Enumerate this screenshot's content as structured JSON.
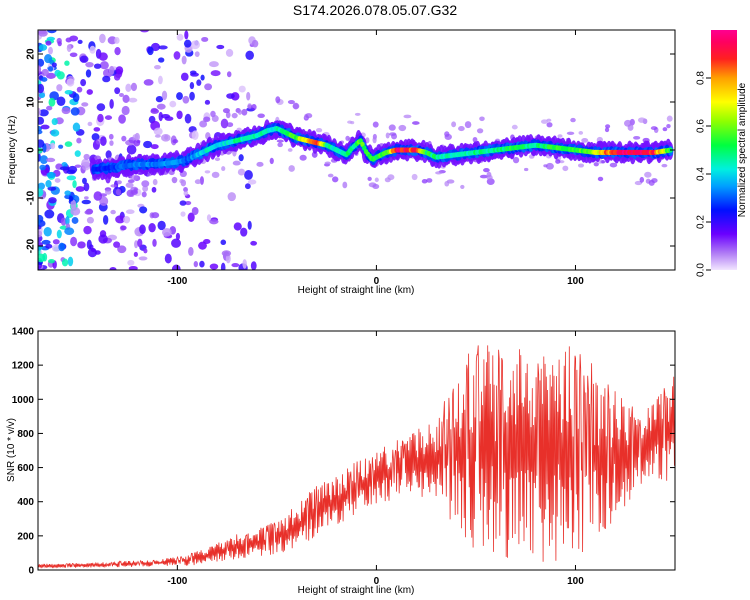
{
  "title": "S174.2026.078.05.07.G32",
  "chart_data": [
    {
      "id": "spectrogram",
      "type": "heatmap",
      "xlabel": "Height of straight line (km)",
      "ylabel": "Frequency (Hz)",
      "xlim": [
        -170,
        150
      ],
      "ylim": [
        -25,
        25
      ],
      "xticks": [
        "-100",
        "0",
        "100"
      ],
      "yticks": [
        "-20",
        "-10",
        "0",
        "10",
        "20"
      ],
      "yticks_values": [
        -20,
        -10,
        0,
        10,
        20
      ],
      "xticks_values": [
        -100,
        0,
        100
      ],
      "colorbar": {
        "label": "Normalized spectral amplitude",
        "range": [
          0.0,
          1.0
        ],
        "ticks": [
          "0.0",
          "0.2",
          "0.4",
          "0.6",
          "0.8"
        ],
        "ticks_values": [
          0.0,
          0.2,
          0.4,
          0.6,
          0.8
        ]
      },
      "ridge": {
        "x": [
          -140,
          -130,
          -120,
          -110,
          -100,
          -95,
          -90,
          -85,
          -80,
          -75,
          -70,
          -65,
          -60,
          -55,
          -50,
          -45,
          -40,
          -35,
          -30,
          -25,
          -20,
          -15,
          -12,
          -8,
          -5,
          -2,
          0,
          5,
          10,
          15,
          20,
          25,
          30,
          40,
          50,
          60,
          70,
          80,
          90,
          100,
          110,
          120,
          130,
          140,
          148
        ],
        "y": [
          -4,
          -3.5,
          -3,
          -3,
          -2.5,
          -2,
          -1,
          0,
          1,
          1.5,
          2,
          2.5,
          3,
          4,
          4.5,
          3.5,
          2.5,
          2,
          1.5,
          1,
          0,
          -1,
          0.5,
          2,
          -0.5,
          -2,
          -1.5,
          -0.5,
          0,
          0,
          0,
          -0.5,
          -1.5,
          -1,
          -0.5,
          0,
          0.5,
          1,
          0.5,
          0,
          -0.5,
          -0.5,
          -0.5,
          -0.5,
          0
        ]
      },
      "ridge_amplitude": [
        0.25,
        0.3,
        0.35,
        0.35,
        0.4,
        0.3,
        0.4,
        0.45,
        0.4,
        0.45,
        0.5,
        0.45,
        0.5,
        0.45,
        0.45,
        0.55,
        0.6,
        0.75,
        0.95,
        0.5,
        0.45,
        0.5,
        0.5,
        0.6,
        0.55,
        0.6,
        0.55,
        0.6,
        0.95,
        0.95,
        0.9,
        0.55,
        0.5,
        0.45,
        0.5,
        0.5,
        0.55,
        0.5,
        0.55,
        0.55,
        0.7,
        0.95,
        0.95,
        0.9,
        0.5
      ]
    },
    {
      "id": "snr",
      "type": "line",
      "xlabel": "Height of straight line (km)",
      "ylabel": "SNR (10 * v/v)",
      "xlim": [
        -170,
        150
      ],
      "ylim": [
        0,
        1400
      ],
      "xticks": [
        "-100",
        "0",
        "100"
      ],
      "xticks_values": [
        -100,
        0,
        100
      ],
      "yticks": [
        "0",
        "200",
        "400",
        "600",
        "800",
        "1000",
        "1200",
        "1400"
      ],
      "yticks_values": [
        0,
        200,
        400,
        600,
        800,
        1000,
        1200,
        1400
      ],
      "series": [
        {
          "name": "SNR",
          "color": "#e8302a",
          "envelope_x": [
            -170,
            -140,
            -110,
            -95,
            -85,
            -70,
            -55,
            -40,
            -30,
            -20,
            -10,
            0,
            10,
            20,
            30,
            40,
            50,
            60,
            70,
            80,
            90,
            100,
            110,
            120,
            130,
            140,
            150
          ],
          "envelope_upper": [
            35,
            45,
            60,
            90,
            130,
            210,
            260,
            380,
            500,
            560,
            640,
            700,
            760,
            820,
            900,
            1150,
            1350,
            1300,
            1350,
            1300,
            1350,
            1300,
            1200,
            1050,
            950,
            1000,
            1150
          ],
          "envelope_lower": [
            10,
            15,
            20,
            25,
            35,
            60,
            80,
            120,
            200,
            260,
            330,
            380,
            420,
            440,
            400,
            250,
            100,
            80,
            60,
            50,
            40,
            60,
            150,
            300,
            450,
            550,
            450
          ]
        }
      ]
    }
  ]
}
